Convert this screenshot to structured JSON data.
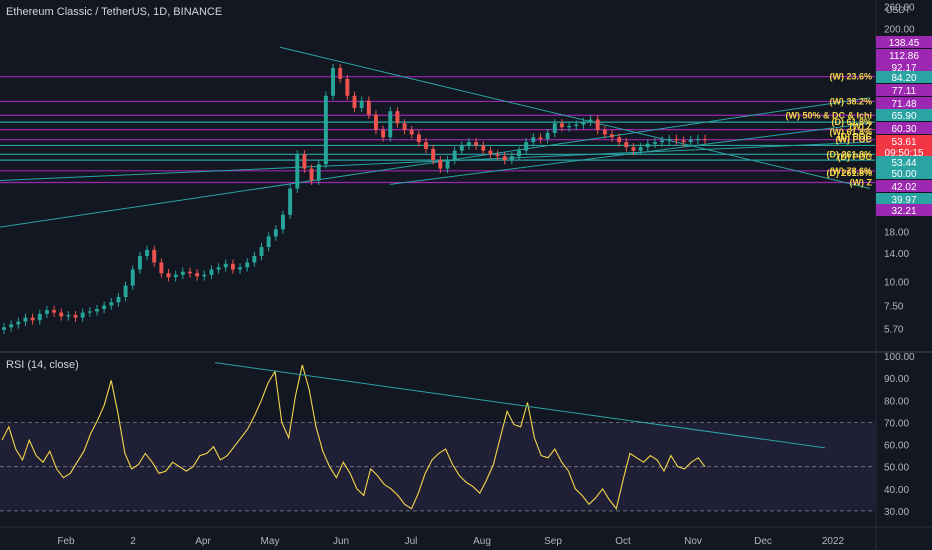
{
  "header": {
    "title": "Ethereum Classic / TetherUS, 1D, BINANCE"
  },
  "rsi_header": {
    "title": "RSI (14, close)"
  },
  "currency": "USDT",
  "colors": {
    "bg": "#131722",
    "up": "#26a69a",
    "down": "#ef5350",
    "purple": "#9c27b0",
    "teal": "#2aa3a3",
    "rsi": "#f5d74a",
    "label": "#f5d74a"
  },
  "chart_data": [
    {
      "type": "candlestick",
      "title": "Ethereum Classic / TetherUS, 1D, BINANCE",
      "y_scale": "log",
      "ylim": [
        4.7,
        280
      ],
      "y_ticks": [
        "260.00",
        "200.00",
        "18.00",
        "14.00",
        "10.00",
        "7.50",
        "5.70"
      ],
      "x_ticks": [
        "Feb",
        "2",
        "Apr",
        "May",
        "Jun",
        "Jul",
        "Aug",
        "Sep",
        "Oct",
        "Nov",
        "Dec",
        "2022"
      ],
      "price_labels": [
        {
          "value": "138.45",
          "color": "#9c27b0"
        },
        {
          "value": "112.86",
          "color": "#9c27b0"
        },
        {
          "value": "92.17",
          "color": "#9c27b0"
        },
        {
          "value": "84.20",
          "color": "#2aa3a3"
        },
        {
          "value": "77.11",
          "color": "#9c27b0"
        },
        {
          "value": "71.48",
          "color": "#9c27b0"
        },
        {
          "value": "65.90",
          "color": "#2aa3a3"
        },
        {
          "value": "60.30",
          "color": "#9c27b0"
        },
        {
          "value": "53.61",
          "color": "#f23645"
        },
        {
          "value": "09:50:15",
          "color": "#f23645"
        },
        {
          "value": "53.44",
          "color": "#2aa3a3"
        },
        {
          "value": "50.00",
          "color": "#2aa3a3"
        },
        {
          "value": "42.02",
          "color": "#9c27b0"
        },
        {
          "value": "39.97",
          "color": "#2aa3a3"
        },
        {
          "value": "32.21",
          "color": "#9c27b0"
        }
      ],
      "level_labels": [
        {
          "text": "(W) 23.6%",
          "value": 112.86
        },
        {
          "text": "(W) 38.2%",
          "value": 84.2
        },
        {
          "text": "(W) 50% & DC & Ichi",
          "value": 71.48
        },
        {
          "text": "(D) 61.8%",
          "value": 65.9
        },
        {
          "text": "(W) Z",
          "value": 62.5
        },
        {
          "text": "(W) 61.8%",
          "value": 58.5
        },
        {
          "text": "(D) POC",
          "value": 55.6
        },
        {
          "text": "(W) POC",
          "value": 53.5
        },
        {
          "text": "(D) 261.8%",
          "value": 45.0
        },
        {
          "text": "(D) POC",
          "value": 43.5
        },
        {
          "text": "(W) 78.6%",
          "value": 37.0
        },
        {
          "text": "(D) 261.8%",
          "value": 36.0
        },
        {
          "text": "(W) Z",
          "value": 32.21
        }
      ],
      "horizontal_levels": [
        {
          "value": 112.86,
          "color": "#9c27b0"
        },
        {
          "value": 84.2,
          "color": "#9c27b0"
        },
        {
          "value": 71.48,
          "color": "#9c27b0"
        },
        {
          "value": 65.9,
          "color": "#2aa3a3"
        },
        {
          "value": 60.3,
          "color": "#9c27b0"
        },
        {
          "value": 53.5,
          "color": "#9c27b0"
        },
        {
          "value": 50.0,
          "color": "#2aa3a3"
        },
        {
          "value": 45.0,
          "color": "#2aa3a3"
        },
        {
          "value": 42.02,
          "color": "#2aa3a3"
        },
        {
          "value": 37.0,
          "color": "#9c27b0"
        },
        {
          "value": 32.21,
          "color": "#9c27b0"
        }
      ],
      "trend_lines": [
        {
          "from": [
            0.0,
            19.0
          ],
          "to": [
            870,
            88.0
          ],
          "color": "#2aa3a3"
        },
        {
          "from": [
            0.0,
            33.0
          ],
          "to": [
            870,
            52.0
          ],
          "color": "#2aa3a3"
        },
        {
          "from": [
            280,
            160.0
          ],
          "to": [
            870,
            30.0
          ],
          "color": "#2aa3a3"
        },
        {
          "from": [
            390,
            31.5
          ],
          "to": [
            870,
            65.0
          ],
          "color": "#2aa3a3"
        }
      ],
      "candles_close": [
        5.8,
        6.0,
        6.2,
        6.5,
        6.3,
        6.8,
        7.1,
        6.9,
        6.6,
        6.7,
        6.5,
        6.9,
        7.0,
        7.2,
        7.5,
        7.8,
        8.3,
        9.5,
        11.5,
        13.5,
        14.5,
        12.5,
        11.0,
        10.5,
        10.8,
        11.2,
        11.0,
        10.6,
        10.8,
        11.5,
        11.8,
        12.3,
        11.5,
        11.8,
        12.5,
        13.5,
        15.0,
        17.0,
        18.5,
        22.0,
        30.0,
        45.0,
        38.0,
        33.0,
        40.0,
        90.0,
        125.0,
        110.0,
        90.0,
        78.0,
        85.0,
        72.0,
        60.0,
        55.0,
        75.0,
        65.0,
        60.0,
        57.0,
        52.0,
        48.0,
        42.0,
        38.0,
        42.0,
        47.0,
        50.0,
        52.0,
        50.0,
        47.0,
        45.0,
        44.0,
        42.0,
        44.0,
        47.0,
        52.0,
        55.0,
        54.0,
        58.0,
        65.0,
        62.0,
        63.0,
        64.0,
        66.0,
        68.0,
        60.0,
        57.0,
        55.0,
        52.0,
        49.0,
        47.0,
        49.0,
        51.0,
        52.0,
        53.0,
        54.0,
        53.0,
        52.0,
        53.5,
        54.0,
        53.6
      ]
    },
    {
      "type": "line",
      "title": "RSI (14, close)",
      "ylim": [
        25,
        100
      ],
      "y_ticks": [
        "100.00",
        "90.00",
        "80.00",
        "70.00",
        "60.00",
        "50.00",
        "40.00",
        "30.00"
      ],
      "band": [
        30,
        70
      ],
      "values": [
        62,
        68,
        58,
        53,
        62,
        55,
        52,
        57,
        49,
        45,
        47,
        52,
        57,
        65,
        71,
        78,
        89,
        74,
        56,
        49,
        51,
        56,
        52,
        47,
        48,
        52,
        50,
        48,
        50,
        55,
        56,
        59,
        53,
        55,
        59,
        63,
        67,
        73,
        80,
        88,
        93,
        70,
        63,
        82,
        96,
        85,
        68,
        57,
        50,
        45,
        52,
        47,
        40,
        37,
        49,
        46,
        42,
        40,
        37,
        33,
        31,
        38,
        47,
        53,
        56,
        58,
        51,
        46,
        43,
        41,
        38,
        44,
        51,
        63,
        75,
        69,
        68,
        79,
        63,
        55,
        54,
        58,
        52,
        48,
        40,
        37,
        33,
        36,
        40,
        35,
        31,
        44,
        56,
        54,
        52,
        55,
        53,
        48,
        55,
        50,
        49,
        52,
        54,
        50
      ],
      "trend_line": {
        "from": [
          215,
          97.0
        ],
        "to": [
          825,
          58.5
        ],
        "color": "#2aa3a3"
      }
    }
  ]
}
